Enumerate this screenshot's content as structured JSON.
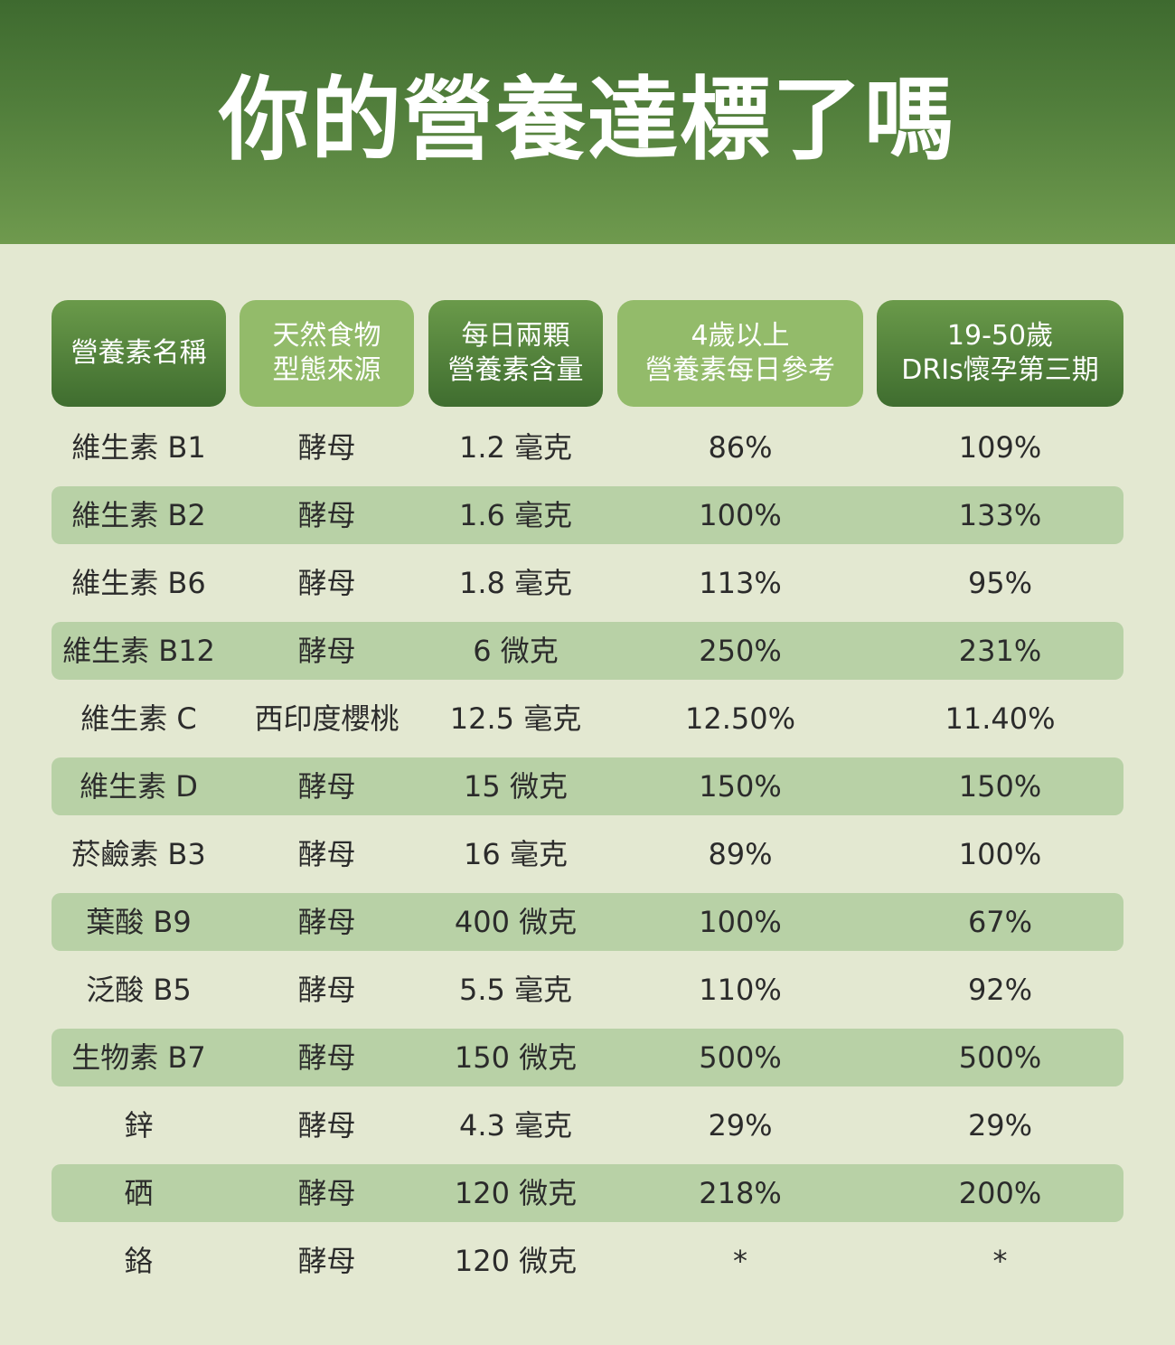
{
  "title": "你的營養達標了嗎",
  "headers": [
    {
      "lines": [
        "營養素名稱"
      ]
    },
    {
      "lines": [
        "天然食物",
        "型態來源"
      ]
    },
    {
      "lines": [
        "每日兩顆",
        "營養素含量"
      ]
    },
    {
      "lines": [
        "4歲以上",
        "營養素每日參考"
      ]
    },
    {
      "lines": [
        "19-50歲",
        "DRIs懷孕第三期"
      ]
    }
  ],
  "rows": [
    {
      "name": "維生素 B1",
      "source": "酵母",
      "amount": "1.2 毫克",
      "ref4": "86%",
      "dri": "109%"
    },
    {
      "name": "維生素 B2",
      "source": "酵母",
      "amount": "1.6 毫克",
      "ref4": "100%",
      "dri": "133%"
    },
    {
      "name": "維生素 B6",
      "source": "酵母",
      "amount": "1.8 毫克",
      "ref4": "113%",
      "dri": "95%"
    },
    {
      "name": "維生素 B12",
      "source": "酵母",
      "amount": "6 微克",
      "ref4": "250%",
      "dri": "231%"
    },
    {
      "name": "維生素 C",
      "source": "西印度櫻桃",
      "amount": "12.5 毫克",
      "ref4": "12.50%",
      "dri": "11.40%"
    },
    {
      "name": "維生素 D",
      "source": "酵母",
      "amount": "15 微克",
      "ref4": "150%",
      "dri": "150%"
    },
    {
      "name": "菸鹼素 B3",
      "source": "酵母",
      "amount": "16 毫克",
      "ref4": "89%",
      "dri": "100%"
    },
    {
      "name": "葉酸 B9",
      "source": "酵母",
      "amount": "400 微克",
      "ref4": "100%",
      "dri": "67%"
    },
    {
      "name": "泛酸 B5",
      "source": "酵母",
      "amount": "5.5 毫克",
      "ref4": "110%",
      "dri": "92%"
    },
    {
      "name": "生物素 B7",
      "source": "酵母",
      "amount": "150 微克",
      "ref4": "500%",
      "dri": "500%"
    },
    {
      "name": "鋅",
      "source": "酵母",
      "amount": "4.3 毫克",
      "ref4": "29%",
      "dri": "29%"
    },
    {
      "name": "硒",
      "source": "酵母",
      "amount": "120 微克",
      "ref4": "218%",
      "dri": "200%"
    },
    {
      "name": "鉻",
      "source": "酵母",
      "amount": "120 微克",
      "ref4": "*",
      "dri": "*"
    }
  ]
}
